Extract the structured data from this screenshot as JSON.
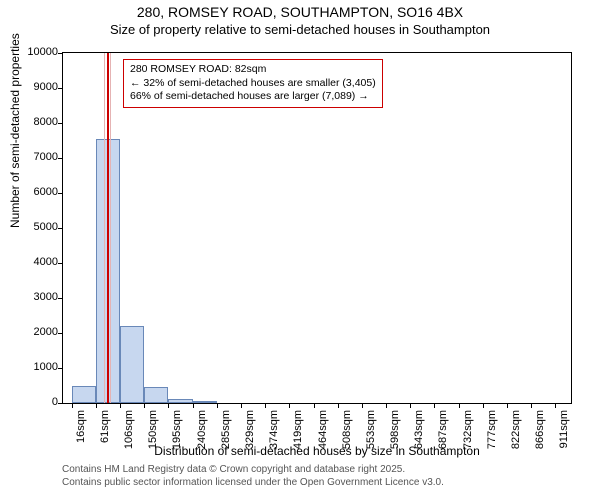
{
  "title": "280, ROMSEY ROAD, SOUTHAMPTON, SO16 4BX",
  "subtitle": "Size of property relative to semi-detached houses in Southampton",
  "chart": {
    "type": "histogram",
    "ylabel": "Number of semi-detached properties",
    "xlabel": "Distribution of semi-detached houses by size in Southampton",
    "ylim": [
      0,
      10000
    ],
    "ytick_step": 1000,
    "yticks": [
      0,
      1000,
      2000,
      3000,
      4000,
      5000,
      6000,
      7000,
      8000,
      9000,
      10000
    ],
    "xtick_labels": [
      "16sqm",
      "61sqm",
      "106sqm",
      "150sqm",
      "195sqm",
      "240sqm",
      "285sqm",
      "329sqm",
      "374sqm",
      "419sqm",
      "464sqm",
      "508sqm",
      "553sqm",
      "598sqm",
      "643sqm",
      "687sqm",
      "732sqm",
      "777sqm",
      "822sqm",
      "866sqm",
      "911sqm"
    ],
    "xtick_positions": [
      16,
      61,
      106,
      150,
      195,
      240,
      285,
      329,
      374,
      419,
      464,
      508,
      553,
      598,
      643,
      687,
      732,
      777,
      822,
      866,
      911
    ],
    "x_range": [
      0,
      940
    ],
    "bars": [
      {
        "x_start": 16,
        "x_end": 61,
        "value": 500
      },
      {
        "x_start": 61,
        "x_end": 106,
        "value": 7550
      },
      {
        "x_start": 106,
        "x_end": 150,
        "value": 2200
      },
      {
        "x_start": 150,
        "x_end": 195,
        "value": 450
      },
      {
        "x_start": 195,
        "x_end": 240,
        "value": 120
      },
      {
        "x_start": 240,
        "x_end": 285,
        "value": 40
      }
    ],
    "bar_fill": "#c7d7ef",
    "bar_stroke": "#6988b8",
    "marker_x": 82,
    "marker_color_main": "#cc0000",
    "marker_color_side": "#e6b3b3",
    "annotation": {
      "line1": "280 ROMSEY ROAD: 82sqm",
      "line2": "← 32% of semi-detached houses are smaller (3,405)",
      "line3": "66% of semi-detached houses are larger (7,089) →"
    },
    "title_fontsize": 14,
    "label_fontsize": 12,
    "tick_fontsize": 11,
    "annotation_fontsize": 10.5,
    "background_color": "#ffffff",
    "axis_color": "#000000"
  },
  "footer": {
    "line1": "Contains HM Land Registry data © Crown copyright and database right 2025.",
    "line2": "Contains public sector information licensed under the Open Government Licence v3.0."
  }
}
